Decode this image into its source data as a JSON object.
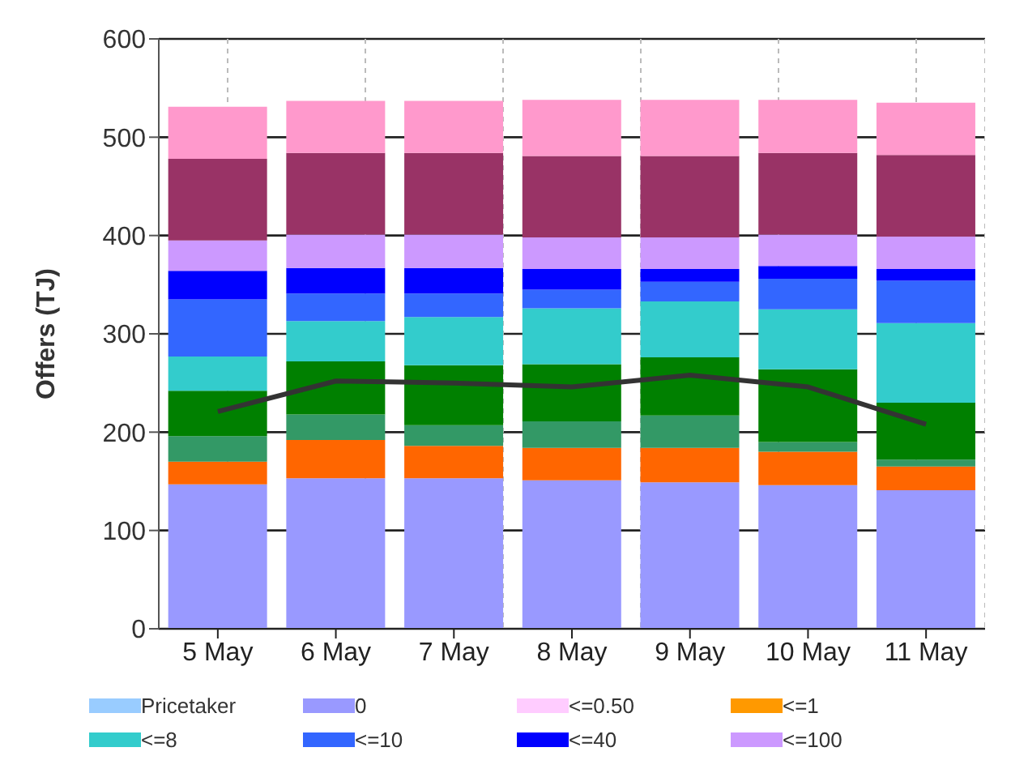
{
  "chart_data": {
    "type": "bar",
    "stacked": true,
    "ylabel": "Offers (TJ)",
    "categories": [
      "5 May",
      "6 May",
      "7 May",
      "8 May",
      "9 May",
      "10 May",
      "11 May"
    ],
    "ylim": [
      0,
      600
    ],
    "yticks": [
      0,
      100,
      200,
      300,
      400,
      500,
      600
    ],
    "grid": true,
    "legend": "bottom",
    "series": [
      {
        "name": "Pricetaker",
        "color": "#99ccff",
        "values": [
          0,
          0,
          0,
          0,
          0,
          0,
          0
        ]
      },
      {
        "name": "0",
        "color": "#9999ff",
        "values": [
          147,
          153,
          153,
          151,
          149,
          146,
          141
        ]
      },
      {
        "name": "<=0.50",
        "color": "#ffccff",
        "values": [
          0,
          0,
          0,
          0,
          0,
          0,
          0
        ]
      },
      {
        "name": "<=1",
        "color": "#ff9900",
        "values": [
          0,
          0,
          0,
          0,
          0,
          0,
          0
        ]
      },
      {
        "color": "#ff6600",
        "values": [
          23,
          39,
          33,
          33,
          35,
          34,
          24
        ]
      },
      {
        "color": "#339966",
        "values": [
          26,
          26,
          21,
          27,
          33,
          10,
          7
        ]
      },
      {
        "color": "#008000",
        "values": [
          46,
          54,
          61,
          58,
          59,
          74,
          58
        ]
      },
      {
        "name": "<=8",
        "color": "#33cccc",
        "values": [
          35,
          41,
          49,
          57,
          57,
          61,
          81
        ]
      },
      {
        "name": "<=10",
        "color": "#3366ff",
        "values": [
          58,
          28,
          24,
          19,
          20,
          31,
          43
        ]
      },
      {
        "name": "<=40",
        "color": "#0000ff",
        "values": [
          29,
          26,
          26,
          21,
          13,
          13,
          12
        ]
      },
      {
        "name": "<=100",
        "color": "#cc99ff",
        "values": [
          31,
          34,
          34,
          32,
          32,
          32,
          33
        ]
      },
      {
        "color": "#993366",
        "values": [
          83,
          83,
          83,
          83,
          83,
          83,
          83
        ]
      },
      {
        "color": "#ff99cc",
        "values": [
          53,
          53,
          53,
          57,
          57,
          54,
          53
        ]
      },
      {
        "type": "line",
        "color": "#333333",
        "values": [
          221,
          252,
          250,
          246,
          258,
          246,
          208
        ]
      }
    ]
  }
}
